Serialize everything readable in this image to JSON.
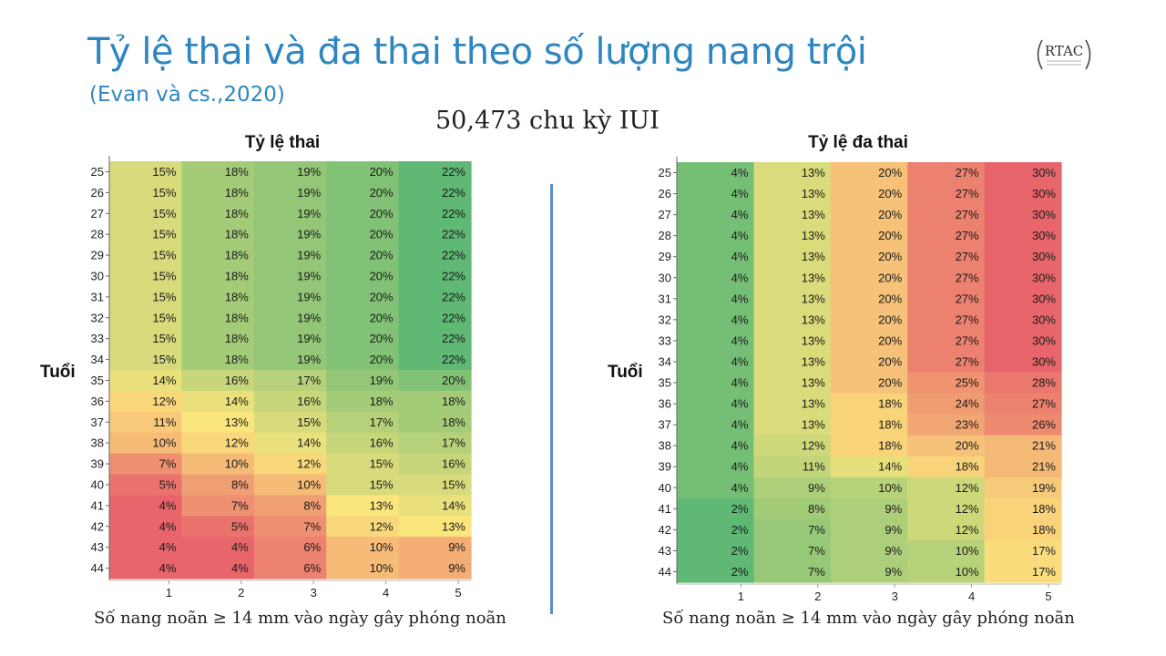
{
  "slide": {
    "title": "Tỷ lệ thai và đa thai theo số lượng nang trội",
    "subtitle": "(Evan và cs.,2020)",
    "cycles": "50,473 chu kỳ IUI",
    "logo_text": "RTAC"
  },
  "colors": {
    "title_blue": "#2e86c1",
    "divider": "#5b8fc7",
    "scale_low": "#e8666b",
    "scale_mid": "#fbe57d",
    "scale_high": "#5fb874"
  },
  "chart_data": [
    {
      "type": "heatmap",
      "title": "Tỷ lệ thai",
      "ylabel": "Tuổi",
      "xlabel": "Số nang noãn  ≥ 14 mm vào ngày gây phóng noãn",
      "x": [
        "1",
        "2",
        "3",
        "4",
        "5"
      ],
      "y": [
        "25",
        "26",
        "27",
        "28",
        "29",
        "30",
        "31",
        "32",
        "33",
        "34",
        "35",
        "36",
        "37",
        "38",
        "39",
        "40",
        "41",
        "42",
        "43",
        "44"
      ],
      "values": [
        [
          15,
          18,
          19,
          20,
          22
        ],
        [
          15,
          18,
          19,
          20,
          22
        ],
        [
          15,
          18,
          19,
          20,
          22
        ],
        [
          15,
          18,
          19,
          20,
          22
        ],
        [
          15,
          18,
          19,
          20,
          22
        ],
        [
          15,
          18,
          19,
          20,
          22
        ],
        [
          15,
          18,
          19,
          20,
          22
        ],
        [
          15,
          18,
          19,
          20,
          22
        ],
        [
          15,
          18,
          19,
          20,
          22
        ],
        [
          15,
          18,
          19,
          20,
          22
        ],
        [
          14,
          16,
          17,
          19,
          20
        ],
        [
          12,
          14,
          16,
          18,
          18
        ],
        [
          11,
          13,
          15,
          17,
          18
        ],
        [
          10,
          12,
          14,
          16,
          17
        ],
        [
          7,
          10,
          12,
          15,
          16
        ],
        [
          5,
          8,
          10,
          15,
          15
        ],
        [
          4,
          7,
          8,
          13,
          14
        ],
        [
          4,
          5,
          7,
          12,
          13
        ],
        [
          4,
          4,
          6,
          10,
          9
        ],
        [
          4,
          4,
          6,
          10,
          9
        ]
      ],
      "unit": "%",
      "color_scale": "green = high, red = low"
    },
    {
      "type": "heatmap",
      "title": "Tỷ lệ đa thai",
      "ylabel": "Tuổi",
      "xlabel": "Số nang noãn  ≥ 14 mm vào ngày gây phóng noãn",
      "x": [
        "1",
        "2",
        "3",
        "4",
        "5"
      ],
      "y": [
        "25",
        "26",
        "27",
        "28",
        "29",
        "30",
        "31",
        "32",
        "33",
        "34",
        "35",
        "36",
        "37",
        "38",
        "39",
        "40",
        "41",
        "42",
        "43",
        "44"
      ],
      "values": [
        [
          4,
          13,
          20,
          27,
          30
        ],
        [
          4,
          13,
          20,
          27,
          30
        ],
        [
          4,
          13,
          20,
          27,
          30
        ],
        [
          4,
          13,
          20,
          27,
          30
        ],
        [
          4,
          13,
          20,
          27,
          30
        ],
        [
          4,
          13,
          20,
          27,
          30
        ],
        [
          4,
          13,
          20,
          27,
          30
        ],
        [
          4,
          13,
          20,
          27,
          30
        ],
        [
          4,
          13,
          20,
          27,
          30
        ],
        [
          4,
          13,
          20,
          27,
          30
        ],
        [
          4,
          13,
          20,
          25,
          28
        ],
        [
          4,
          13,
          18,
          24,
          27
        ],
        [
          4,
          13,
          18,
          23,
          26
        ],
        [
          4,
          12,
          18,
          20,
          21
        ],
        [
          4,
          11,
          14,
          18,
          21
        ],
        [
          4,
          9,
          10,
          12,
          19
        ],
        [
          2,
          8,
          9,
          12,
          18
        ],
        [
          2,
          7,
          9,
          12,
          18
        ],
        [
          2,
          7,
          9,
          10,
          17
        ],
        [
          2,
          7,
          9,
          10,
          17
        ]
      ],
      "unit": "%",
      "color_scale": "green = low, red = high"
    }
  ]
}
